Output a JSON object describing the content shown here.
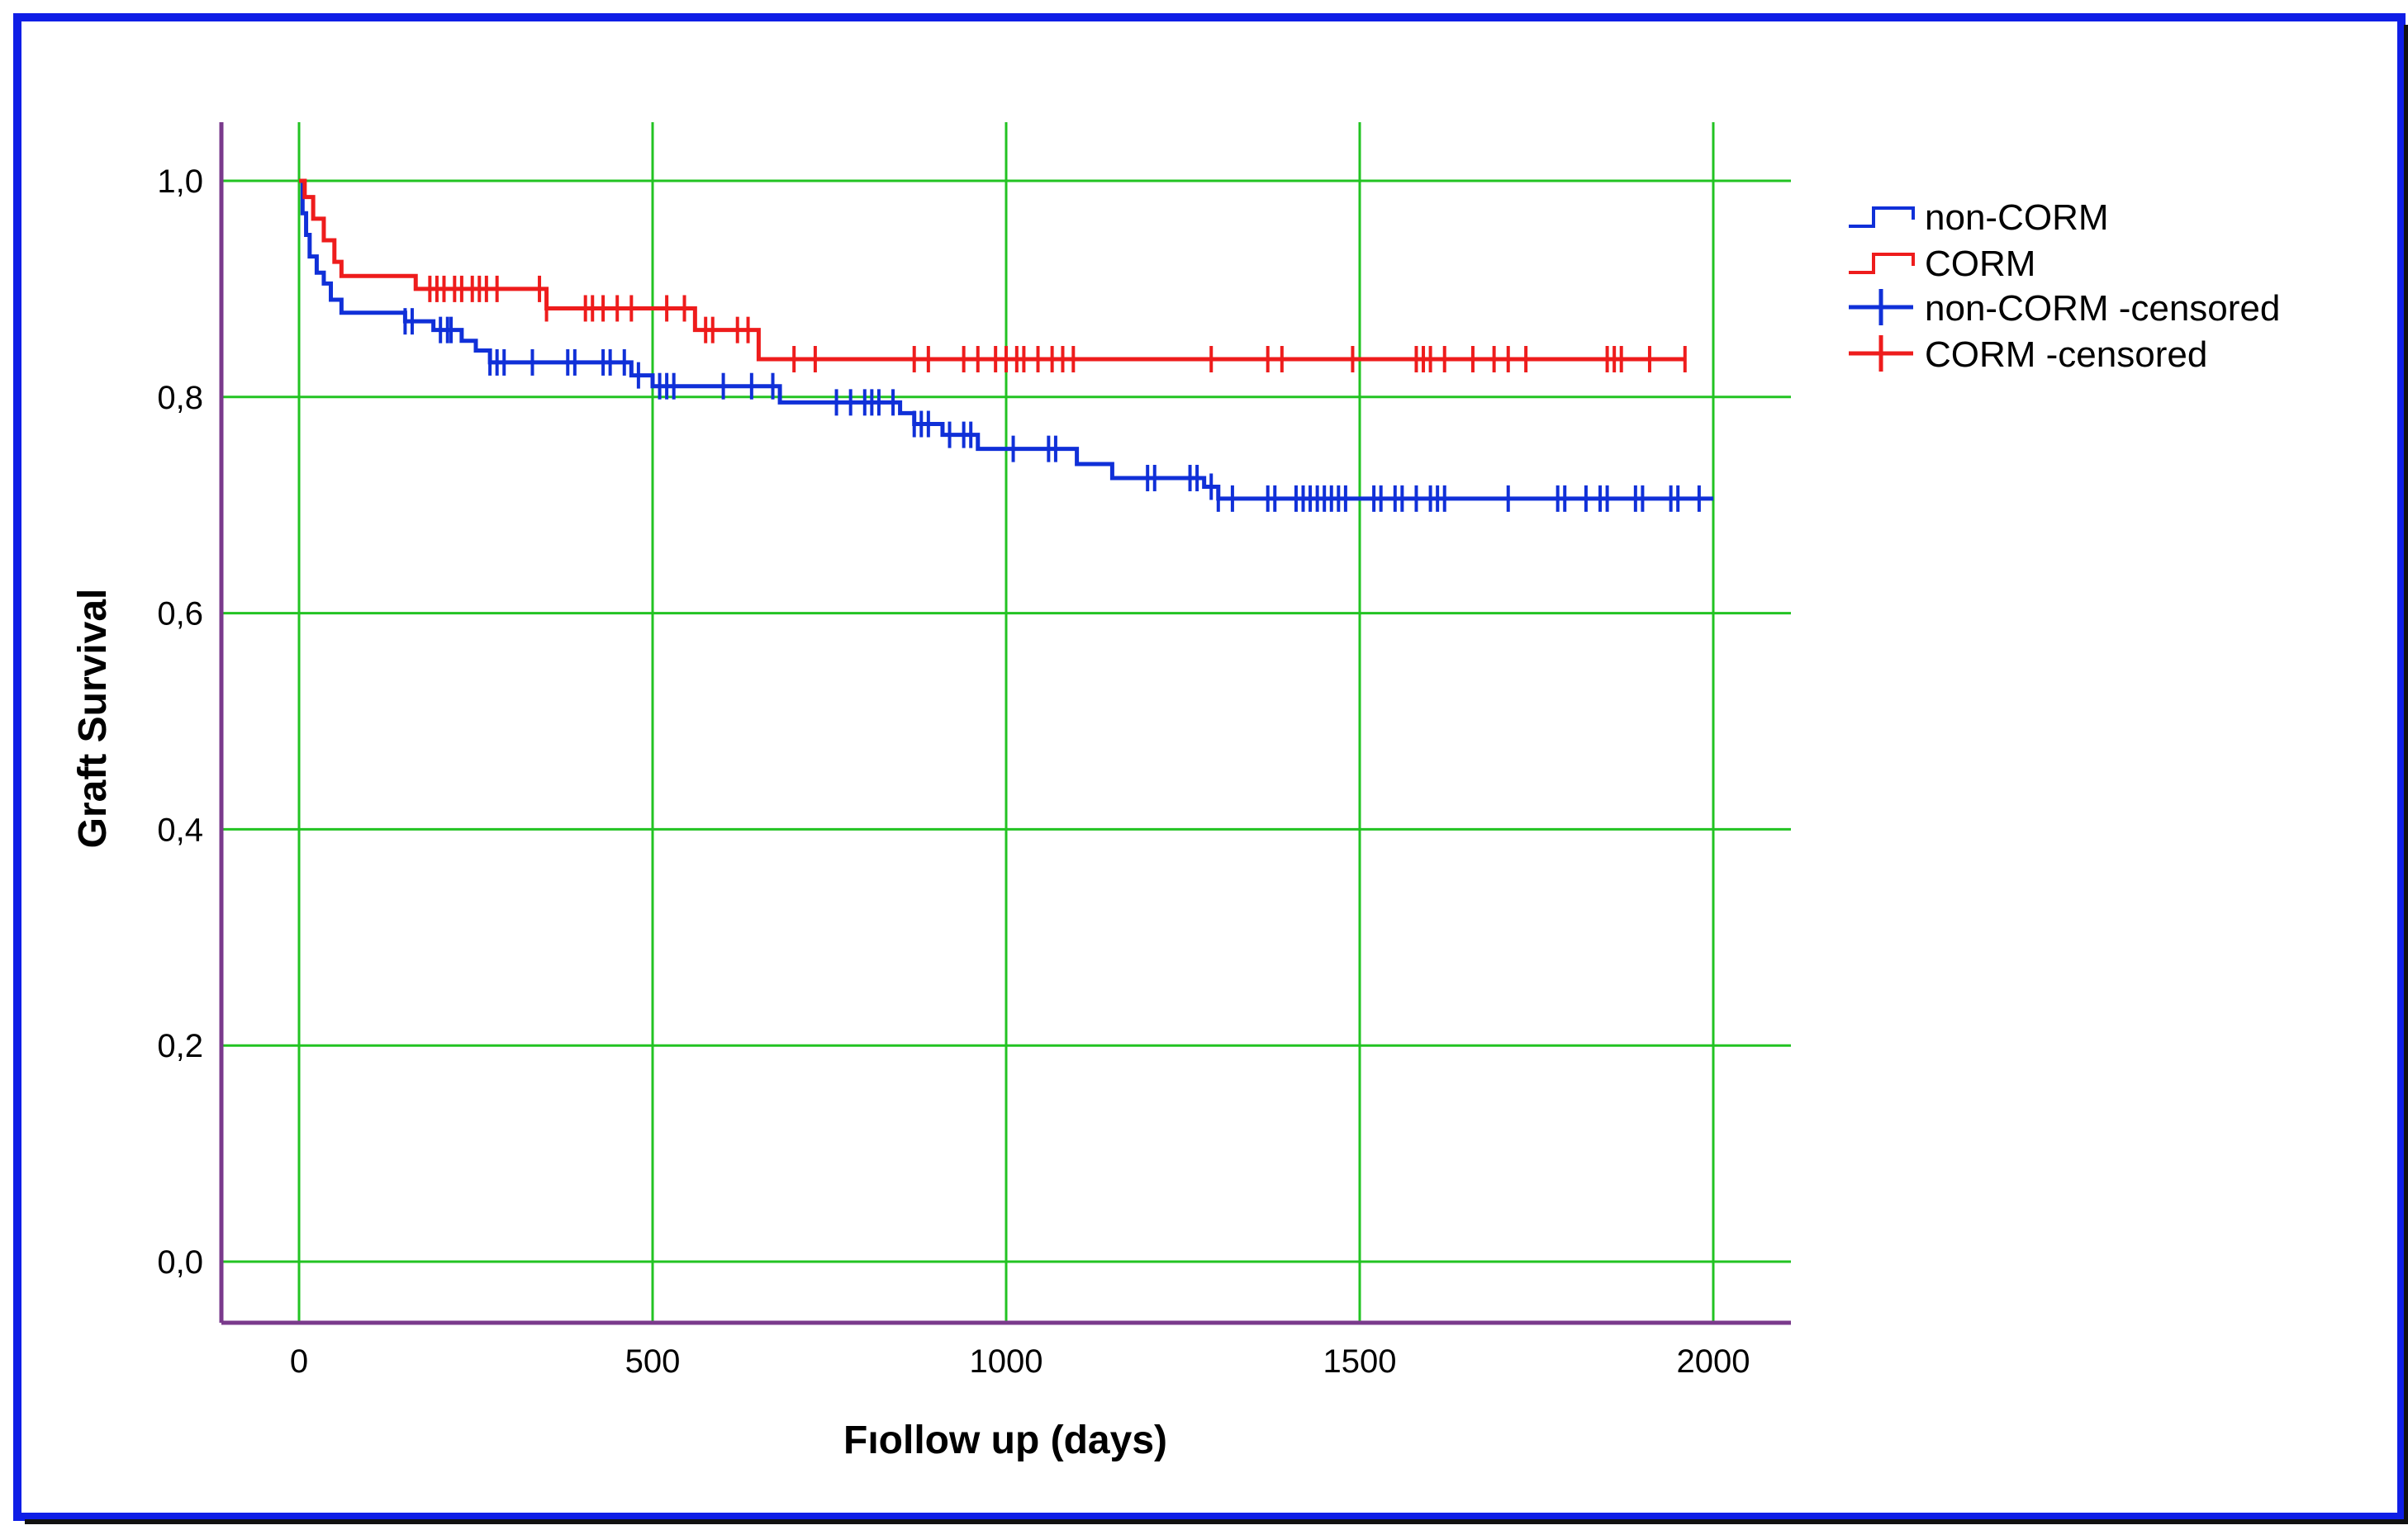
{
  "chart_data": {
    "type": "line",
    "subtype": "kaplan-meier",
    "title": "",
    "xlabel": "Fıollow up (days)",
    "ylabel": "Graft Survival",
    "xlim": [
      0,
      2000
    ],
    "ylim": [
      0.0,
      1.0
    ],
    "x_ticks": [
      "0",
      "500",
      "1000",
      "1500",
      "2000"
    ],
    "y_ticks": [
      "0,0",
      "0,2",
      "0,4",
      "0,6",
      "0,8",
      "1,0"
    ],
    "grid": true,
    "legend_position": "right",
    "legend": [
      {
        "label": "non-CORM",
        "kind": "step-line",
        "color": "#1030d8"
      },
      {
        "label": "CORM",
        "kind": "step-line",
        "color": "#ee1c1c"
      },
      {
        "label": "non-CORM -censored",
        "kind": "censor-mark",
        "color": "#1030d8"
      },
      {
        "label": "CORM -censored",
        "kind": "censor-mark",
        "color": "#ee1c1c"
      }
    ],
    "series": [
      {
        "name": "non-CORM",
        "color": "#1030d8",
        "steps": [
          [
            0,
            1.0
          ],
          [
            5,
            0.97
          ],
          [
            10,
            0.95
          ],
          [
            15,
            0.93
          ],
          [
            25,
            0.915
          ],
          [
            35,
            0.905
          ],
          [
            45,
            0.89
          ],
          [
            60,
            0.878
          ],
          [
            150,
            0.87
          ],
          [
            190,
            0.862
          ],
          [
            230,
            0.852
          ],
          [
            250,
            0.843
          ],
          [
            270,
            0.832
          ],
          [
            470,
            0.82
          ],
          [
            500,
            0.81
          ],
          [
            680,
            0.795
          ],
          [
            850,
            0.785
          ],
          [
            870,
            0.775
          ],
          [
            910,
            0.765
          ],
          [
            960,
            0.752
          ],
          [
            1100,
            0.738
          ],
          [
            1150,
            0.725
          ],
          [
            1280,
            0.717
          ],
          [
            1300,
            0.706
          ],
          [
            2000,
            0.706
          ]
        ],
        "censored": [
          150,
          160,
          200,
          210,
          215,
          270,
          280,
          290,
          330,
          380,
          390,
          430,
          440,
          460,
          480,
          510,
          520,
          530,
          600,
          640,
          670,
          760,
          780,
          800,
          810,
          820,
          840,
          870,
          880,
          890,
          920,
          940,
          950,
          1010,
          1060,
          1070,
          1200,
          1210,
          1260,
          1270,
          1290,
          1300,
          1320,
          1370,
          1380,
          1410,
          1420,
          1430,
          1440,
          1450,
          1460,
          1470,
          1480,
          1520,
          1530,
          1550,
          1560,
          1580,
          1600,
          1610,
          1620,
          1710,
          1780,
          1790,
          1820,
          1840,
          1850,
          1890,
          1900,
          1940,
          1950,
          1980
        ]
      },
      {
        "name": "CORM",
        "color": "#ee1c1c",
        "steps": [
          [
            0,
            1.0
          ],
          [
            8,
            0.985
          ],
          [
            20,
            0.965
          ],
          [
            35,
            0.945
          ],
          [
            50,
            0.925
          ],
          [
            60,
            0.912
          ],
          [
            165,
            0.9
          ],
          [
            350,
            0.882
          ],
          [
            560,
            0.862
          ],
          [
            650,
            0.835
          ],
          [
            1960,
            0.835
          ]
        ],
        "censored": [
          185,
          195,
          205,
          220,
          230,
          245,
          255,
          265,
          280,
          340,
          350,
          405,
          415,
          430,
          450,
          470,
          520,
          545,
          575,
          585,
          620,
          635,
          700,
          730,
          870,
          890,
          940,
          960,
          985,
          1000,
          1015,
          1025,
          1045,
          1065,
          1080,
          1095,
          1290,
          1370,
          1390,
          1490,
          1580,
          1590,
          1600,
          1620,
          1660,
          1690,
          1710,
          1735,
          1850,
          1860,
          1870,
          1910,
          1960
        ]
      }
    ]
  },
  "colors": {
    "frame": "#0f1ee6",
    "grid": "#22c322",
    "axis": "#7a3a8c"
  }
}
